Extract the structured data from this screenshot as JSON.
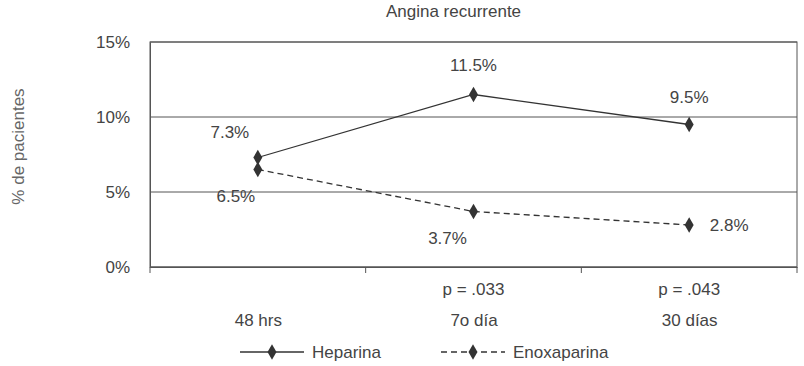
{
  "chart_data": {
    "type": "line",
    "title": "Angina recurrente",
    "y_label": "% de pacientes",
    "categories": [
      "48 hrs",
      "7o día",
      "30 días"
    ],
    "series": [
      {
        "name": "Heparina",
        "color": "#333333",
        "marker": "diamond",
        "line_style": "solid",
        "values": [
          7.3,
          11.5,
          9.5
        ],
        "value_labels": [
          "7.3%",
          "11.5%",
          "9.5%"
        ]
      },
      {
        "name": "Enoxaparina",
        "color": "#333333",
        "marker": "diamond",
        "line_style": "dashed",
        "values": [
          6.5,
          3.7,
          2.8
        ],
        "value_labels": [
          "6.5%",
          "3.7%",
          "2.8%"
        ]
      }
    ],
    "annotations": [
      {
        "text": "p = .033",
        "x": "7o día"
      },
      {
        "text": "p = .043",
        "x": "30 días"
      }
    ],
    "ylim": [
      0,
      15
    ],
    "yticks": [
      {
        "value": 0,
        "label": "0%"
      },
      {
        "value": 5,
        "label": "5%"
      },
      {
        "value": 10,
        "label": "10%"
      },
      {
        "value": 15,
        "label": "15%"
      }
    ],
    "grid": true,
    "data_labels": true,
    "legend": "bottom"
  }
}
